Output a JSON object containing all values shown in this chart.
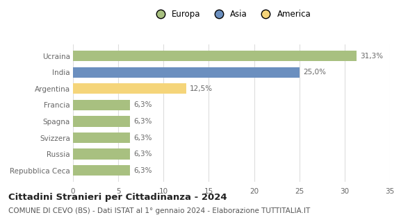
{
  "categories": [
    "Repubblica Ceca",
    "Russia",
    "Svizzera",
    "Spagna",
    "Francia",
    "Argentina",
    "India",
    "Ucraina"
  ],
  "values": [
    6.3,
    6.3,
    6.3,
    6.3,
    6.3,
    12.5,
    25.0,
    31.3
  ],
  "labels": [
    "6,3%",
    "6,3%",
    "6,3%",
    "6,3%",
    "6,3%",
    "12,5%",
    "25,0%",
    "31,3%"
  ],
  "colors": [
    "#a8c080",
    "#a8c080",
    "#a8c080",
    "#a8c080",
    "#a8c080",
    "#f5d57a",
    "#6b8fbf",
    "#a8c080"
  ],
  "legend": [
    {
      "label": "Europa",
      "color": "#a8c080"
    },
    {
      "label": "Asia",
      "color": "#6b8fbf"
    },
    {
      "label": "America",
      "color": "#f5d57a"
    }
  ],
  "xlim": [
    0,
    35
  ],
  "xticks": [
    0,
    5,
    10,
    15,
    20,
    25,
    30,
    35
  ],
  "title": "Cittadini Stranieri per Cittadinanza - 2024",
  "subtitle": "COMUNE DI CEVO (BS) - Dati ISTAT al 1° gennaio 2024 - Elaborazione TUTTITALIA.IT",
  "bg_color": "#ffffff",
  "plot_bg_color": "#ffffff",
  "bar_height": 0.65,
  "label_fontsize": 7.5,
  "title_fontsize": 9.5,
  "subtitle_fontsize": 7.5,
  "tick_fontsize": 7.5,
  "ytick_color": "#666666",
  "xtick_color": "#666666",
  "grid_color": "#dddddd",
  "label_color": "#666666"
}
